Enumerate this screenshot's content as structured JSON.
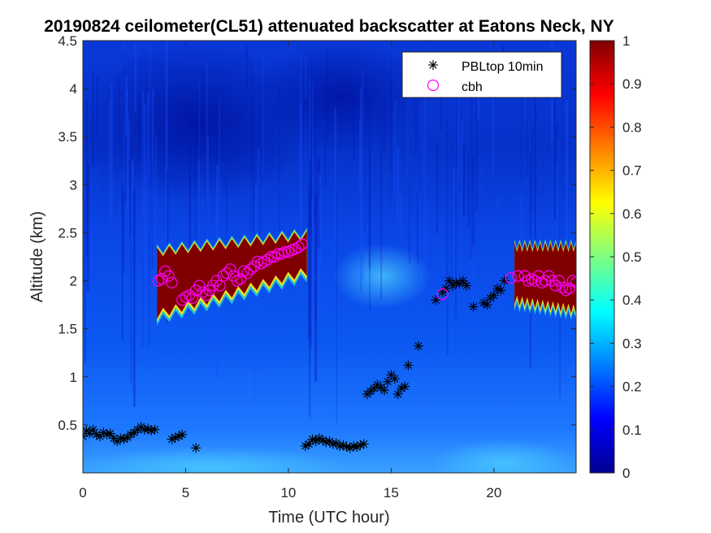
{
  "chart_data": {
    "type": "heatmap",
    "title": "20190824 ceilometer(CL51) attenuated backscatter at Eatons Neck, NY",
    "xlabel": "Time (UTC hour)",
    "ylabel": "Altitude (km)",
    "xlim": [
      0,
      24
    ],
    "ylim": [
      0,
      4.5
    ],
    "xticks": [
      0,
      5,
      10,
      15,
      20
    ],
    "yticks": [
      0.5,
      1,
      1.5,
      2,
      2.5,
      3,
      3.5,
      4,
      4.5
    ],
    "colorbar": {
      "min": 0,
      "max": 1,
      "ticks": [
        0,
        0.1,
        0.2,
        0.3,
        0.4,
        0.5,
        0.6,
        0.7,
        0.8,
        0.9,
        1
      ],
      "colormap": "jet"
    },
    "legend": {
      "position": "top-right",
      "entries": [
        {
          "label": "PBLtop 10min",
          "marker": "asterisk",
          "color": "#000000"
        },
        {
          "label": "cbh",
          "marker": "circle",
          "color": "#ff00ff"
        }
      ]
    },
    "cloud_layers": [
      {
        "t_start": 3.6,
        "t_end": 10.9,
        "top_start": 2.3,
        "top_end": 2.47,
        "base_start": 1.65,
        "base_end": 2.1
      },
      {
        "t_start": 21.0,
        "t_end": 24.0,
        "top_start": 2.35,
        "top_end": 2.35,
        "base_start": 1.8,
        "base_end": 1.7
      }
    ],
    "series": [
      {
        "name": "PBLtop 10min",
        "marker": "asterisk",
        "color": "#000000",
        "x": [
          0.0,
          0.17,
          0.33,
          0.5,
          0.67,
          0.83,
          1.0,
          1.17,
          1.33,
          1.5,
          1.67,
          1.83,
          2.0,
          2.17,
          2.33,
          2.5,
          2.67,
          2.83,
          3.0,
          3.17,
          3.33,
          3.5,
          4.33,
          4.5,
          4.67,
          4.83,
          5.5,
          10.83,
          11.0,
          11.17,
          11.33,
          11.5,
          11.67,
          11.83,
          12.0,
          12.17,
          12.33,
          12.5,
          12.67,
          12.83,
          13.0,
          13.17,
          13.33,
          13.5,
          13.67,
          13.83,
          14.0,
          14.17,
          14.33,
          14.5,
          14.67,
          14.83,
          15.0,
          15.17,
          15.33,
          15.5,
          15.67,
          15.83,
          16.33,
          17.17,
          17.5,
          17.67,
          17.83,
          18.0,
          18.17,
          18.33,
          18.5,
          18.67,
          19.0,
          19.5,
          19.67,
          19.83,
          20.0,
          20.17,
          20.33,
          20.5
        ],
        "y": [
          0.38,
          0.44,
          0.41,
          0.45,
          0.4,
          0.38,
          0.42,
          0.4,
          0.41,
          0.36,
          0.33,
          0.36,
          0.35,
          0.37,
          0.4,
          0.42,
          0.45,
          0.48,
          0.45,
          0.46,
          0.44,
          0.45,
          0.35,
          0.37,
          0.38,
          0.4,
          0.26,
          0.28,
          0.3,
          0.35,
          0.33,
          0.36,
          0.34,
          0.32,
          0.33,
          0.3,
          0.31,
          0.28,
          0.29,
          0.27,
          0.26,
          0.28,
          0.27,
          0.29,
          0.3,
          0.82,
          0.85,
          0.88,
          0.92,
          0.89,
          0.86,
          0.95,
          1.02,
          0.98,
          0.82,
          0.88,
          0.9,
          1.12,
          1.32,
          1.8,
          1.88,
          1.92,
          2.0,
          1.95,
          1.98,
          1.97,
          2.0,
          1.95,
          1.73,
          1.77,
          1.75,
          1.82,
          1.85,
          1.92,
          1.9,
          2.0
        ]
      },
      {
        "name": "cbh",
        "marker": "circle",
        "color": "#ff00ff",
        "x": [
          3.67,
          3.83,
          4.0,
          4.17,
          4.33,
          4.83,
          5.0,
          5.17,
          5.33,
          5.5,
          5.67,
          5.83,
          6.0,
          6.17,
          6.33,
          6.5,
          6.67,
          6.83,
          7.0,
          7.17,
          7.33,
          7.5,
          7.67,
          7.83,
          8.0,
          8.17,
          8.33,
          8.5,
          8.67,
          8.83,
          9.0,
          9.17,
          9.33,
          9.5,
          9.67,
          9.83,
          10.0,
          10.17,
          10.33,
          10.5,
          10.67,
          17.5,
          20.83,
          21.17,
          21.5,
          21.67,
          21.83,
          22.0,
          22.17,
          22.33,
          22.5,
          22.67,
          22.83,
          23.0,
          23.17,
          23.33,
          23.5,
          23.67,
          23.83,
          24.0
        ],
        "y": [
          2.0,
          2.02,
          2.1,
          2.05,
          1.98,
          1.8,
          1.83,
          1.85,
          1.82,
          1.9,
          1.95,
          1.88,
          1.85,
          1.9,
          1.95,
          2.0,
          1.95,
          2.05,
          2.08,
          2.12,
          2.05,
          2.0,
          2.02,
          2.1,
          2.08,
          2.12,
          2.15,
          2.2,
          2.18,
          2.2,
          2.22,
          2.25,
          2.25,
          2.28,
          2.28,
          2.3,
          2.3,
          2.32,
          2.33,
          2.35,
          2.38,
          1.86,
          2.03,
          2.05,
          2.05,
          2.0,
          2.02,
          2.0,
          2.05,
          1.98,
          2.0,
          2.05,
          2.0,
          1.95,
          2.0,
          1.93,
          1.9,
          1.92,
          2.0,
          1.98
        ]
      }
    ]
  }
}
